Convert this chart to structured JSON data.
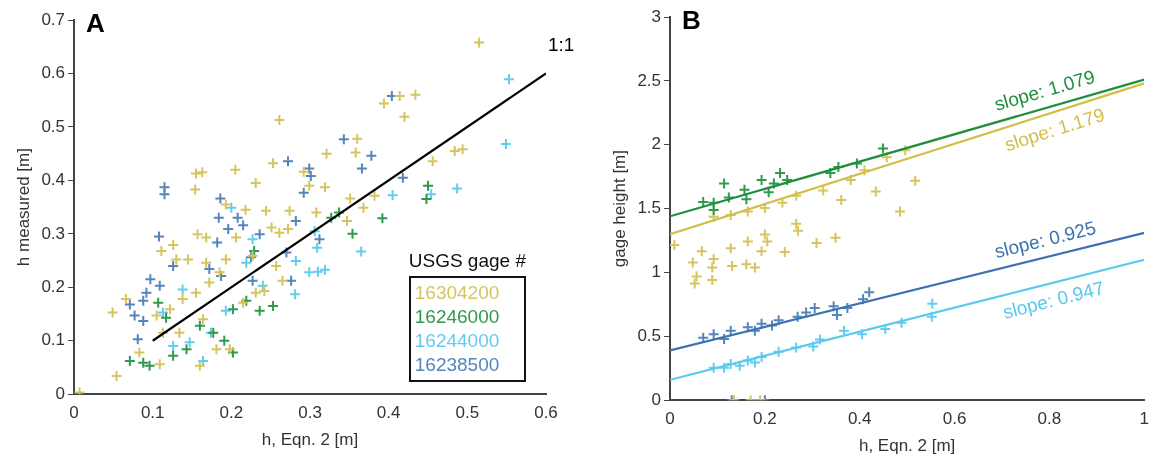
{
  "chart_data": [
    {
      "type": "scatter",
      "title": "A",
      "xlabel": "h, Eqn. 2 [m]",
      "ylabel": "h measured [m]",
      "legend_title": "USGS gage #",
      "legend": "bottom right",
      "marker": "cross",
      "grid": false,
      "xlim": [
        0,
        0.6
      ],
      "ylim": [
        0,
        0.7
      ],
      "xticks": [
        0,
        0.1,
        0.2,
        0.3,
        0.4,
        0.5,
        0.6
      ],
      "yticks": [
        0,
        0.1,
        0.2,
        0.3,
        0.4,
        0.5,
        0.6,
        0.7
      ],
      "annotations": [
        "1:1"
      ],
      "series": [
        {
          "name": "16304200",
          "color": "#d6c55e",
          "x": [
            0.515,
            0.394,
            0.414,
            0.434,
            0.42,
            0.261,
            0.36,
            0.358,
            0.321,
            0.484,
            0.494,
            0.456,
            0.253,
            0.205,
            0.155,
            0.163,
            0.154,
            0.231,
            0.292,
            0.299,
            0.319,
            0.351,
            0.382,
            0.368,
            0.347,
            0.193,
            0.218,
            0.244,
            0.274,
            0.308,
            0.157,
            0.168,
            0.126,
            0.111,
            0.206,
            0.251,
            0.261,
            0.272,
            0.13,
            0.145,
            0.168,
            0.193,
            0.227,
            0.257,
            0.265,
            0.231,
            0.242,
            0.066,
            0.049,
            0.054,
            0.105,
            0.122,
            0.138,
            0.155,
            0.172,
            0.185,
            0.113,
            0.134,
            0.164,
            0.181,
            0.16,
            0.109,
            0.083,
            0.198,
            0.215,
            0.007
          ],
          "values": [
            0.658,
            0.544,
            0.558,
            0.56,
            0.519,
            0.513,
            0.478,
            0.452,
            0.45,
            0.455,
            0.458,
            0.436,
            0.432,
            0.42,
            0.413,
            0.415,
            0.383,
            0.395,
            0.416,
            0.39,
            0.387,
            0.366,
            0.371,
            0.349,
            0.324,
            0.355,
            0.345,
            0.343,
            0.343,
            0.34,
            0.299,
            0.293,
            0.279,
            0.268,
            0.293,
            0.312,
            0.302,
            0.309,
            0.252,
            0.252,
            0.246,
            0.252,
            0.259,
            0.24,
            0.212,
            0.19,
            0.193,
            0.178,
            0.153,
            0.034,
            0.147,
            0.159,
            0.178,
            0.19,
            0.209,
            0.228,
            0.115,
            0.115,
            0.14,
            0.084,
            0.053,
            0.056,
            0.078,
            0.084,
            0.171,
            0.003
          ]
        },
        {
          "name": "16246000",
          "color": "#2e9a4c",
          "x": [
            0.45,
            0.448,
            0.392,
            0.354,
            0.337,
            0.327,
            0.229,
            0.236,
            0.253,
            0.219,
            0.202,
            0.107,
            0.117,
            0.088,
            0.071,
            0.096,
            0.143,
            0.16,
            0.191,
            0.202,
            0.126,
            0.177
          ],
          "values": [
            0.39,
            0.365,
            0.329,
            0.3,
            0.34,
            0.33,
            0.268,
            0.156,
            0.165,
            0.175,
            0.159,
            0.171,
            0.143,
            0.059,
            0.062,
            0.053,
            0.084,
            0.128,
            0.1,
            0.078,
            0.072,
            0.115
          ]
        },
        {
          "name": "16244000",
          "color": "#62cdf0",
          "x": [
            0.553,
            0.549,
            0.487,
            0.454,
            0.405,
            0.365,
            0.309,
            0.299,
            0.31,
            0.319,
            0.281,
            0.282,
            0.306,
            0.2,
            0.227,
            0.24,
            0.219,
            0.113,
            0.147,
            0.126,
            0.164,
            0.193,
            0.174,
            0.138
          ],
          "values": [
            0.589,
            0.468,
            0.385,
            0.374,
            0.372,
            0.267,
            0.274,
            0.228,
            0.229,
            0.233,
            0.187,
            0.249,
            0.305,
            0.349,
            0.29,
            0.203,
            0.246,
            0.153,
            0.097,
            0.09,
            0.062,
            0.156,
            0.115,
            0.196
          ]
        },
        {
          "name": "16238500",
          "color": "#5485bb",
          "x": [
            0.404,
            0.343,
            0.378,
            0.366,
            0.418,
            0.272,
            0.299,
            0.301,
            0.292,
            0.115,
            0.115,
            0.186,
            0.184,
            0.196,
            0.208,
            0.215,
            0.282,
            0.236,
            0.182,
            0.108,
            0.312,
            0.27,
            0.225,
            0.276,
            0.227,
            0.097,
            0.092,
            0.088,
            0.071,
            0.077,
            0.088,
            0.126,
            0.172,
            0.187,
            0.109,
            0.081
          ],
          "values": [
            0.558,
            0.477,
            0.446,
            0.422,
            0.405,
            0.436,
            0.422,
            0.408,
            0.377,
            0.387,
            0.374,
            0.366,
            0.33,
            0.309,
            0.33,
            0.316,
            0.324,
            0.299,
            0.284,
            0.295,
            0.29,
            0.265,
            0.256,
            0.212,
            0.212,
            0.215,
            0.19,
            0.175,
            0.168,
            0.147,
            0.137,
            0.24,
            0.234,
            0.221,
            0.203,
            0.103
          ]
        },
        {
          "type": "line",
          "marker": "none",
          "color": "#000000",
          "x": [
            0.1,
            0.6
          ],
          "values": [
            0.1,
            0.6
          ]
        }
      ]
    },
    {
      "type": "scatter",
      "title": "B",
      "xlabel": "h, Eqn. 2 [m]",
      "ylabel": "gage height [m]",
      "marker": "cross",
      "grid": false,
      "xlim": [
        0,
        1
      ],
      "ylim": [
        0,
        3
      ],
      "xticks": [
        0,
        0.2,
        0.4,
        0.6,
        0.8,
        1
      ],
      "yticks": [
        0,
        0.5,
        1,
        1.5,
        2,
        2.5,
        3
      ],
      "annotations": [
        "slope: 1.079",
        "slope: 1.179",
        "slope: 0.925",
        "slope: 0.947"
      ],
      "series": [
        {
          "color": "#2e9a4c",
          "x": [
            0.449,
            0.394,
            0.355,
            0.338,
            0.232,
            0.247,
            0.193,
            0.114,
            0.157,
            0.07,
            0.092,
            0.092,
            0.124,
            0.161,
            0.208,
            0.219
          ],
          "values": [
            1.971,
            1.853,
            1.825,
            1.779,
            1.779,
            1.724,
            1.724,
            1.696,
            1.647,
            1.551,
            1.545,
            1.49,
            1.587,
            1.573,
            1.628,
            1.696
          ]
        },
        {
          "color": "#d6c55e",
          "x": [
            0.496,
            0.457,
            0.41,
            0.517,
            0.434,
            0.485,
            0.361,
            0.349,
            0.309,
            0.242,
            0.266,
            0.27,
            0.2,
            0.205,
            0.193,
            0.179,
            0.161,
            0.128,
            0.131,
            0.092,
            0.089,
            0.056,
            0.052,
            0.089,
            0.048,
            0.067,
            0.009,
            0.164,
            0.092,
            0.128,
            0.164,
            0.2,
            0.237,
            0.266,
            0.323,
            0.381,
            0.135,
            0.17,
            0.19
          ],
          "values": [
            1.957,
            1.902,
            1.801,
            1.718,
            1.633,
            1.477,
            1.567,
            1.271,
            1.23,
            1.161,
            1.381,
            1.326,
            1.298,
            1.243,
            1.167,
            1.038,
            1.065,
            1.189,
            1.051,
            1.106,
            1.038,
            0.969,
            0.914,
            0.942,
            1.079,
            1.167,
            1.216,
            1.243,
            1.436,
            1.449,
            1.477,
            1.504,
            1.545,
            1.6,
            1.642,
            1.724,
            0,
            0,
            0
          ]
        },
        {
          "color": "#5485bb",
          "x": [
            0.42,
            0.407,
            0.374,
            0.352,
            0.345,
            0.305,
            0.287,
            0.269,
            0.229,
            0.193,
            0.164,
            0.128,
            0.092,
            0.07,
            0.114,
            0.179,
            0.215,
            0.13,
            0.2
          ],
          "values": [
            0.845,
            0.791,
            0.722,
            0.667,
            0.736,
            0.722,
            0.686,
            0.653,
            0.626,
            0.598,
            0.571,
            0.544,
            0.516,
            0.489,
            0.48,
            0.544,
            0.585,
            0,
            0
          ]
        },
        {
          "color": "#62cdf0",
          "x": [
            0.553,
            0.552,
            0.488,
            0.454,
            0.405,
            0.367,
            0.316,
            0.302,
            0.266,
            0.229,
            0.193,
            0.164,
            0.128,
            0.092,
            0.114,
            0.147,
            0.179
          ],
          "values": [
            0.755,
            0.653,
            0.607,
            0.557,
            0.516,
            0.544,
            0.475,
            0.42,
            0.412,
            0.379,
            0.338,
            0.31,
            0.283,
            0.255,
            0.255,
            0.269,
            0.296
          ]
        },
        {
          "type": "line",
          "marker": "none",
          "color": "#1f8f3c",
          "x": [
            0,
            1
          ],
          "values": [
            1.44,
            2.51
          ]
        },
        {
          "type": "line",
          "marker": "none",
          "color": "#d4bd45",
          "x": [
            0,
            1
          ],
          "values": [
            1.3,
            2.48
          ]
        },
        {
          "type": "line",
          "marker": "none",
          "color": "#3d72b0",
          "x": [
            0,
            1
          ],
          "values": [
            0.39,
            1.31
          ]
        },
        {
          "type": "line",
          "marker": "none",
          "color": "#58c9ef",
          "x": [
            0,
            1
          ],
          "values": [
            0.16,
            1.1
          ]
        }
      ]
    }
  ]
}
